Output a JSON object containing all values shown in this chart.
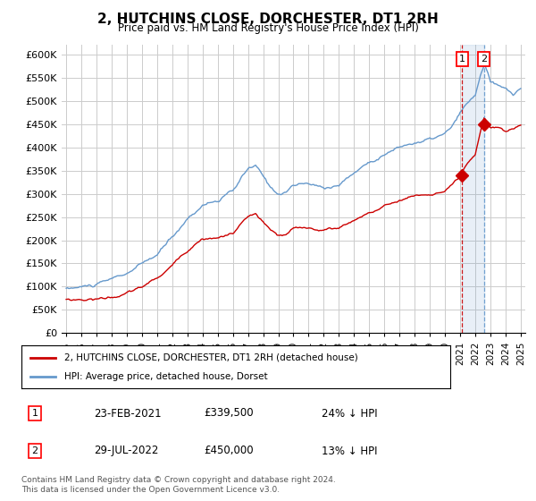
{
  "title": "2, HUTCHINS CLOSE, DORCHESTER, DT1 2RH",
  "subtitle": "Price paid vs. HM Land Registry's House Price Index (HPI)",
  "ylabel_ticks": [
    "£0",
    "£50K",
    "£100K",
    "£150K",
    "£200K",
    "£250K",
    "£300K",
    "£350K",
    "£400K",
    "£450K",
    "£500K",
    "£550K",
    "£600K"
  ],
  "ytick_values": [
    0,
    50000,
    100000,
    150000,
    200000,
    250000,
    300000,
    350000,
    400000,
    450000,
    500000,
    550000,
    600000
  ],
  "ylim": [
    0,
    620000
  ],
  "hpi_color": "#6699cc",
  "price_color": "#cc0000",
  "sale1_year": 2021.14,
  "sale1_price": 339500,
  "sale2_year": 2022.57,
  "sale2_price": 450000,
  "sale1_date": "23-FEB-2021",
  "sale2_date": "29-JUL-2022",
  "sale1_label": "24% ↓ HPI",
  "sale2_label": "13% ↓ HPI",
  "legend_line1": "2, HUTCHINS CLOSE, DORCHESTER, DT1 2RH (detached house)",
  "legend_line2": "HPI: Average price, detached house, Dorset",
  "footnote": "Contains HM Land Registry data © Crown copyright and database right 2024.\nThis data is licensed under the Open Government Licence v3.0.",
  "background_color": "#ffffff",
  "grid_color": "#cccccc"
}
